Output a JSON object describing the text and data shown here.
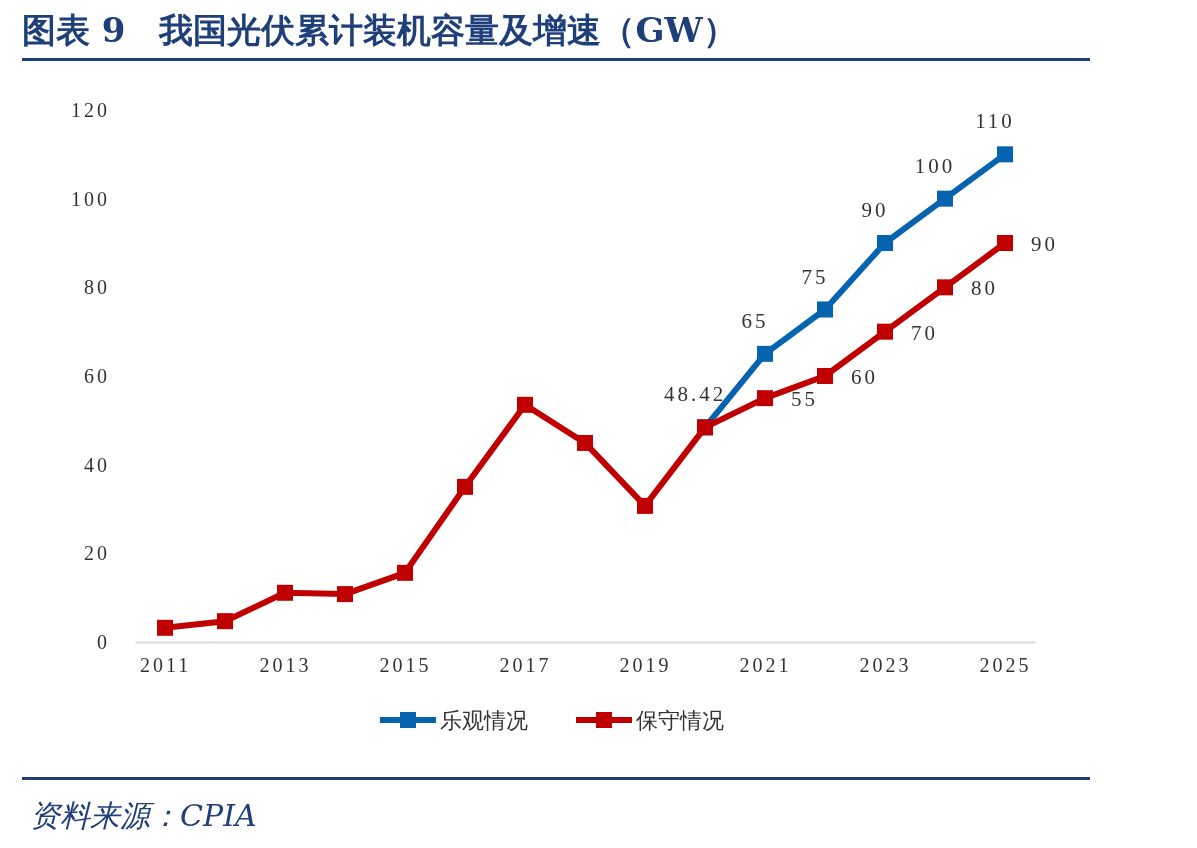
{
  "chart_data": {
    "type": "line",
    "title": "图表 9　我国光伏累计装机容量及增速（GW）",
    "annotations": [
      "资料来源：CPIA"
    ],
    "xlim": [
      2010.5,
      2025.5
    ],
    "xticks": [
      2011,
      2013,
      2015,
      2017,
      2019,
      2021,
      2023,
      2025
    ],
    "ylim": [
      0,
      120
    ],
    "yticks": [
      0,
      20,
      40,
      60,
      80,
      100,
      120
    ],
    "grid": false,
    "legend": "bottom",
    "marker": "square",
    "line_style": "solid",
    "series": [
      {
        "name": "乐观情况",
        "color": "#0563b0",
        "x": [
          2020,
          2021,
          2022,
          2023,
          2024,
          2025
        ],
        "values": [
          48.42,
          65,
          75,
          90,
          100,
          110
        ],
        "value_labels": [
          "48.42",
          "65",
          "75",
          "90",
          "100",
          "110"
        ]
      },
      {
        "name": "保守情况",
        "color": "#c00000",
        "x": [
          2011,
          2012,
          2013,
          2014,
          2015,
          2016,
          2017,
          2018,
          2019,
          2020,
          2021,
          2022,
          2023,
          2024,
          2025
        ],
        "values": [
          3.2,
          4.7,
          11.1,
          10.8,
          15.6,
          35,
          53.5,
          44.9,
          30.7,
          48.42,
          55,
          60,
          70,
          80,
          90
        ],
        "value_labels": [
          null,
          null,
          null,
          null,
          null,
          null,
          null,
          null,
          null,
          null,
          "55",
          "60",
          "70",
          "80",
          "90"
        ]
      }
    ]
  }
}
